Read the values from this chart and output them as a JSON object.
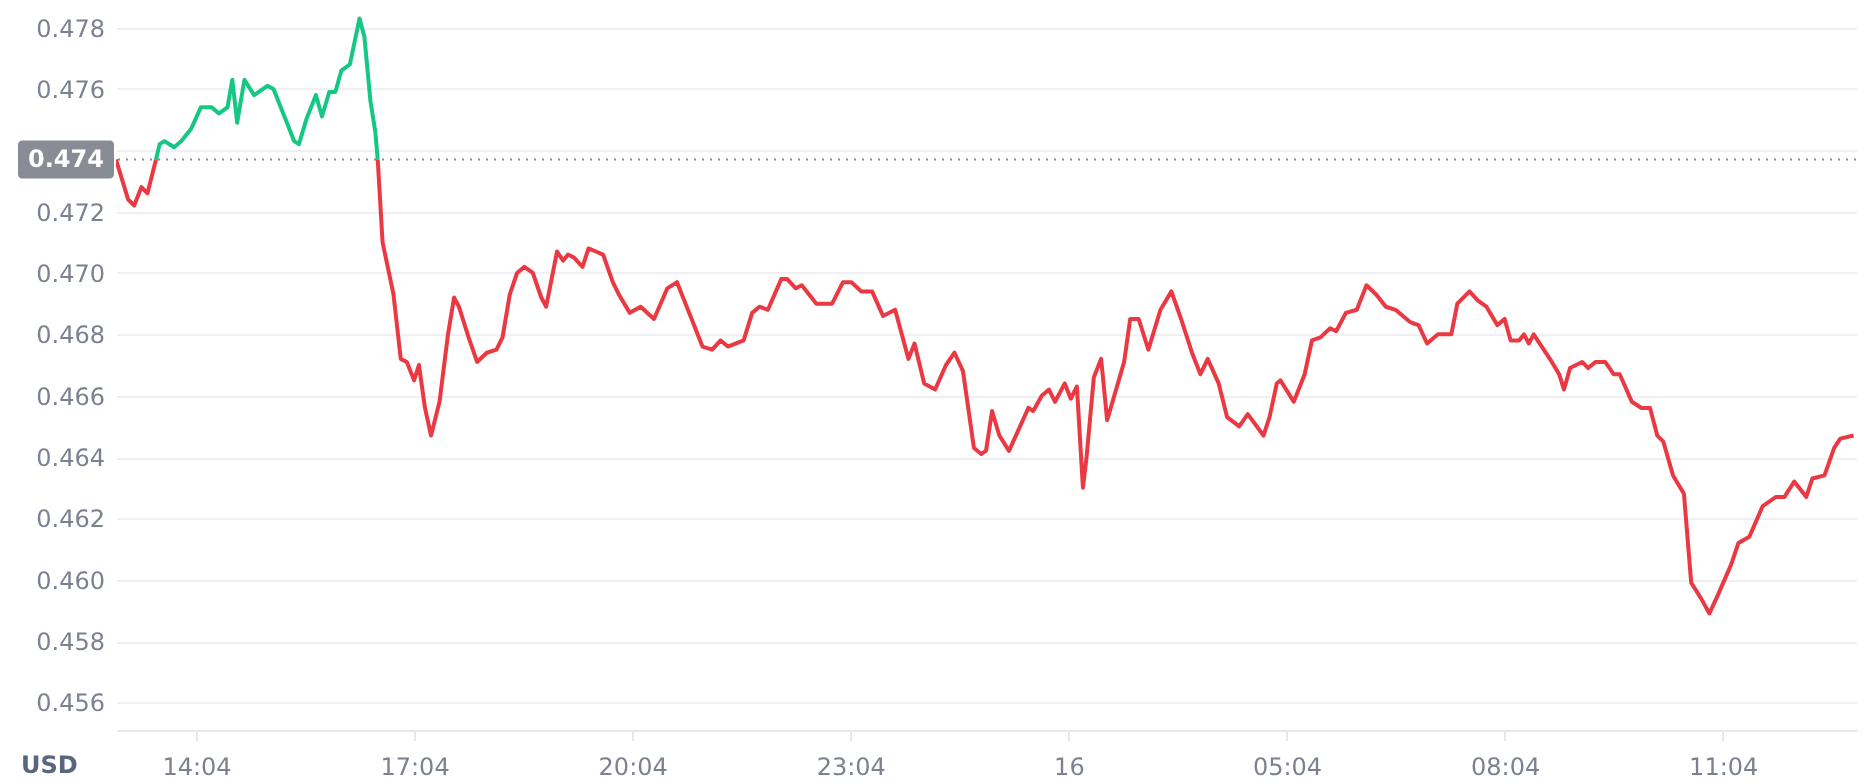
{
  "chart_data": {
    "type": "line",
    "ylabel": "USD",
    "xlim": [
      "--01-15T12:58",
      "--01-16T12:54"
    ],
    "xticks": [
      {
        "value": "--01-15T14:04",
        "label": "14:04"
      },
      {
        "value": "--01-15T17:04",
        "label": "17:04"
      },
      {
        "value": "--01-15T20:04",
        "label": "20:04"
      },
      {
        "value": "--01-15T23:04",
        "label": "23:04"
      },
      {
        "value": "--01-16T02:04",
        "label": "16"
      },
      {
        "value": "--01-16T05:04",
        "label": "05:04"
      },
      {
        "value": "--01-16T08:04",
        "label": "08:04"
      },
      {
        "value": "--01-16T11:04",
        "label": "11:04"
      }
    ],
    "ylim": [
      0.4551,
      0.4789
    ],
    "yticks": [
      0.456,
      0.458,
      {
        "value": 0.46,
        "label": "0.460"
      },
      0.462,
      0.464,
      0.466,
      0.468,
      {
        "value": 0.47,
        "label": "0.470"
      },
      0.472,
      {
        "value": 0.474,
        "label": null
      },
      0.476,
      0.478
    ],
    "grid": "y",
    "marker": "none",
    "line_style": "solid",
    "ref_lines": [
      {
        "axis": "y",
        "value": 0.4737,
        "label": "0.474",
        "line_style": "dotted",
        "color": "#888c94"
      }
    ],
    "series": [
      {
        "color": "#16c784",
        "x": [
          "--01-15T13:31",
          "--01-15T13:34",
          "--01-15T13:38",
          "--01-15T13:46",
          "--01-15T13:52",
          "--01-15T14:00",
          "--01-15T14:08",
          "--01-15T14:17",
          "--01-15T14:23",
          "--01-15T14:30",
          "--01-15T14:34",
          "--01-15T14:38",
          "--01-15T14:44",
          "--01-15T14:52",
          "--01-15T15:03",
          "--01-15T15:08",
          "--01-15T15:17",
          "--01-15T15:25",
          "--01-15T15:29",
          "--01-15T15:35",
          "--01-15T15:43",
          "--01-15T15:48",
          "--01-15T15:54",
          "--01-15T15:59",
          "--01-15T16:04",
          "--01-15T16:11",
          "--01-15T16:19",
          "--01-15T16:23",
          "--01-15T16:28",
          "--01-15T16:32",
          "--01-15T16:34"
        ],
        "values": [
          0.4737,
          0.4742,
          0.4743,
          0.4741,
          0.4743,
          0.4747,
          0.4754,
          0.4754,
          0.4752,
          0.4754,
          0.4763,
          0.4749,
          0.4763,
          0.4758,
          0.4761,
          0.476,
          0.4751,
          0.4743,
          0.4742,
          0.475,
          0.4758,
          0.4751,
          0.4759,
          0.4759,
          0.4766,
          0.4768,
          0.4783,
          0.4777,
          0.4756,
          0.4746,
          0.4737
        ]
      },
      {
        "color": "#ea3943",
        "x": [
          "--01-15T12:58",
          "--01-15T13:08",
          "--01-15T13:13",
          "--01-15T13:19",
          "--01-15T13:24",
          "--01-15T13:31",
          "--01-15T14:30",
          "--01-15T16:34",
          "--01-15T16:38",
          "--01-15T16:47",
          "--01-15T16:53",
          "--01-15T16:58",
          "--01-15T17:04",
          "--01-15T17:08",
          "--01-15T17:13",
          "--01-15T17:18",
          "--01-15T17:25",
          "--01-15T17:32",
          "--01-15T17:37",
          "--01-15T17:41",
          "--01-15T17:49",
          "--01-15T17:56",
          "--01-15T18:04",
          "--01-15T18:12",
          "--01-15T18:17",
          "--01-15T18:23",
          "--01-15T18:29",
          "--01-15T18:35",
          "--01-15T18:42",
          "--01-15T18:49",
          "--01-15T18:53",
          "--01-15T19:02",
          "--01-15T19:07",
          "--01-15T19:11",
          "--01-15T19:16",
          "--01-15T19:23",
          "--01-15T19:28",
          "--01-15T19:34",
          "--01-15T19:40",
          "--01-15T19:48",
          "--01-15T19:53",
          "--01-15T20:02",
          "--01-15T20:11",
          "--01-15T20:22",
          "--01-15T20:33",
          "--01-15T20:41",
          "--01-15T20:51",
          "--01-15T21:02",
          "--01-15T21:10",
          "--01-15T21:17",
          "--01-15T21:23",
          "--01-15T21:36",
          "--01-15T21:43",
          "--01-15T21:49",
          "--01-15T21:56",
          "--01-15T22:07",
          "--01-15T22:12",
          "--01-15T22:19",
          "--01-15T22:24",
          "--01-15T22:36",
          "--01-15T22:40",
          "--01-15T22:49",
          "--01-15T22:58",
          "--01-15T23:05",
          "--01-15T23:13",
          "--01-15T23:22",
          "--01-15T23:31",
          "--01-15T23:41",
          "--01-15T23:52",
          "--01-15T23:57",
          "--01-16T00:05",
          "--01-16T00:14",
          "--01-16T00:23",
          "--01-16T00:30",
          "--01-16T00:37",
          "--01-16T00:46",
          "--01-16T00:52",
          "--01-16T00:56",
          "--01-16T01:01",
          "--01-16T01:07",
          "--01-16T01:15",
          "--01-16T01:23",
          "--01-16T01:31",
          "--01-16T01:35",
          "--01-16T01:42",
          "--01-16T01:48",
          "--01-16T01:53",
          "--01-16T02:01",
          "--01-16T02:06",
          "--01-16T02:11",
          "--01-16T02:16",
          "--01-16T02:19",
          "--01-16T02:25",
          "--01-16T02:31",
          "--01-16T02:36",
          "--01-16T02:50",
          "--01-16T02:55",
          "--01-16T03:02",
          "--01-16T03:10",
          "--01-16T03:20",
          "--01-16T03:29",
          "--01-16T03:37",
          "--01-16T03:46",
          "--01-16T03:53",
          "--01-16T03:59",
          "--01-16T04:08",
          "--01-16T04:15",
          "--01-16T04:25",
          "--01-16T04:32",
          "--01-16T04:45",
          "--01-16T04:50",
          "--01-16T04:56",
          "--01-16T04:59",
          "--01-16T05:10",
          "--01-16T05:19",
          "--01-16T05:25",
          "--01-16T05:32",
          "--01-16T05:40",
          "--01-16T05:45",
          "--01-16T05:53",
          "--01-16T06:02",
          "--01-16T06:10",
          "--01-16T06:18",
          "--01-16T06:26",
          "--01-16T06:34",
          "--01-16T06:46",
          "--01-16T06:53",
          "--01-16T07:00",
          "--01-16T07:09",
          "--01-16T07:20",
          "--01-16T07:25",
          "--01-16T07:35",
          "--01-16T07:42",
          "--01-16T07:49",
          "--01-16T07:58",
          "--01-16T08:04",
          "--01-16T08:09",
          "--01-16T08:16",
          "--01-16T08:20",
          "--01-16T08:24",
          "--01-16T08:28",
          "--01-16T08:33",
          "--01-16T08:43",
          "--01-16T08:49",
          "--01-16T08:53",
          "--01-16T08:58",
          "--01-16T09:08",
          "--01-16T09:13",
          "--01-16T09:19",
          "--01-16T09:27",
          "--01-16T09:34",
          "--01-16T09:39",
          "--01-16T09:49",
          "--01-16T09:57",
          "--01-16T10:04",
          "--01-16T10:10",
          "--01-16T10:15",
          "--01-16T10:23",
          "--01-16T10:32",
          "--01-16T10:38",
          "--01-16T10:46",
          "--01-16T10:53",
          "--01-16T11:00",
          "--01-16T11:11",
          "--01-16T11:17",
          "--01-16T11:26",
          "--01-16T11:37",
          "--01-16T11:48",
          "--01-16T11:55",
          "--01-16T12:03",
          "--01-16T12:13",
          "--01-16T12:18",
          "--01-16T12:28",
          "--01-16T12:36",
          "--01-16T12:41",
          "--01-16T12:52"
        ],
        "values": [
          0.4737,
          0.4724,
          0.4722,
          0.4728,
          0.4726,
          0.4737,
          null,
          0.4737,
          0.471,
          0.4693,
          0.4672,
          0.4671,
          0.4665,
          0.467,
          0.4656,
          0.4647,
          0.4658,
          0.468,
          0.4692,
          0.4689,
          0.4679,
          0.4671,
          0.4674,
          0.4675,
          0.4679,
          0.4693,
          0.47,
          0.4702,
          0.47,
          0.4692,
          0.4689,
          0.4707,
          0.4704,
          0.4706,
          0.4705,
          0.4702,
          0.4708,
          0.4707,
          0.4706,
          0.4697,
          0.4693,
          0.4687,
          0.4689,
          0.4685,
          0.4695,
          0.4697,
          0.4687,
          0.4676,
          0.4675,
          0.4678,
          0.4676,
          0.4678,
          0.4687,
          0.4689,
          0.4688,
          0.4698,
          0.4698,
          0.4695,
          0.4696,
          0.469,
          0.469,
          0.469,
          0.4697,
          0.4697,
          0.4694,
          0.4694,
          0.4686,
          0.4688,
          0.4672,
          0.4677,
          0.4664,
          0.4662,
          0.467,
          0.4674,
          0.4668,
          0.4643,
          0.4641,
          0.4642,
          0.4655,
          0.4647,
          0.4642,
          0.4649,
          0.4656,
          0.4655,
          0.466,
          0.4662,
          0.4658,
          0.4664,
          0.4659,
          0.4663,
          0.463,
          0.464,
          0.4666,
          0.4672,
          0.4652,
          0.4671,
          0.4685,
          0.4685,
          0.4675,
          0.4688,
          0.4694,
          0.4685,
          0.4674,
          0.4667,
          0.4672,
          0.4664,
          0.4653,
          0.465,
          0.4654,
          0.4647,
          0.4653,
          0.4664,
          0.4665,
          0.4658,
          0.4667,
          0.4678,
          0.4679,
          0.4682,
          0.4681,
          0.4687,
          0.4688,
          0.4696,
          0.4693,
          0.4689,
          0.4688,
          0.4684,
          0.4683,
          0.4677,
          0.468,
          0.468,
          0.469,
          0.4694,
          0.4691,
          0.4689,
          0.4683,
          0.4685,
          0.4678,
          0.4678,
          0.468,
          0.4677,
          0.468,
          0.4677,
          0.4671,
          0.4667,
          0.4662,
          0.4669,
          0.4671,
          0.4669,
          0.4671,
          0.4671,
          0.4667,
          0.4667,
          0.4658,
          0.4656,
          0.4656,
          0.4647,
          0.4645,
          0.4634,
          0.4628,
          0.4599,
          0.4594,
          0.4589,
          0.4595,
          0.4605,
          0.4612,
          0.4614,
          0.4624,
          0.4627,
          0.4627,
          0.4632,
          0.4627,
          0.4633,
          0.4634,
          0.4643,
          0.4646,
          0.4647
        ]
      }
    ]
  }
}
